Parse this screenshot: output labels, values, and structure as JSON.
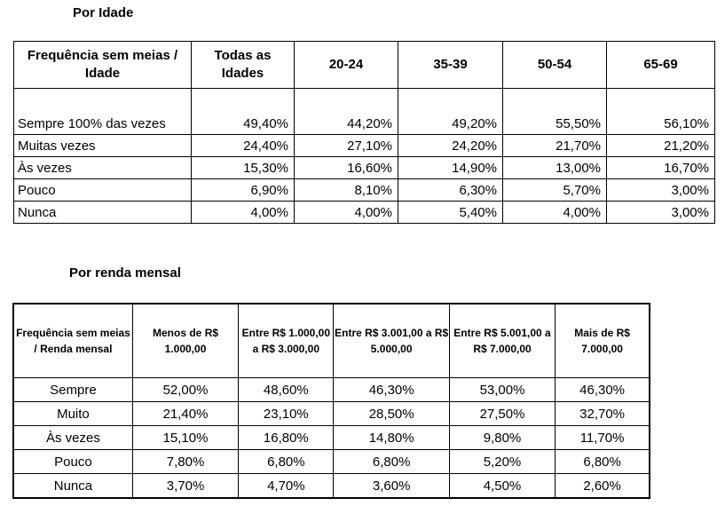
{
  "table1": {
    "title": "Por Idade",
    "headers": [
      "Frequência sem meias / Idade",
      "Todas as Idades",
      "20-24",
      "35-39",
      "50-54",
      "65-69"
    ],
    "rows": [
      [
        "Sempre 100% das vezes",
        "49,40%",
        "44,20%",
        "49,20%",
        "55,50%",
        "56,10%"
      ],
      [
        "Muitas vezes",
        "24,40%",
        "27,10%",
        "24,20%",
        "21,70%",
        "21,20%"
      ],
      [
        "Às vezes",
        "15,30%",
        "16,60%",
        "14,90%",
        "13,00%",
        "16,70%"
      ],
      [
        "Pouco",
        "6,90%",
        "8,10%",
        "6,30%",
        "5,70%",
        "3,00%"
      ],
      [
        "Nunca",
        "4,00%",
        "4,00%",
        "5,40%",
        "4,00%",
        "3,00%"
      ]
    ]
  },
  "table2": {
    "title": "Por renda mensal",
    "headers": [
      "Frequência sem meias / Renda mensal",
      "Menos de R$ 1.000,00",
      "Entre R$ 1.000,00 a R$ 3.000,00",
      "Entre R$ 3.001,00 a R$ 5.000,00",
      "Entre R$ 5.001,00 a R$ 7.000,00",
      "Mais de R$ 7.000,00"
    ],
    "rows": [
      [
        "Sempre",
        "52,00%",
        "48,60%",
        "46,30%",
        "53,00%",
        "46,30%"
      ],
      [
        "Muito",
        "21,40%",
        "23,10%",
        "28,50%",
        "27,50%",
        "32,70%"
      ],
      [
        "Às vezes",
        "15,10%",
        "16,80%",
        "14,80%",
        "9,80%",
        "11,70%"
      ],
      [
        "Pouco",
        "7,80%",
        "6,80%",
        "6,80%",
        "5,20%",
        "6,80%"
      ],
      [
        "Nunca",
        "3,70%",
        "4,70%",
        "3,60%",
        "4,50%",
        "2,60%"
      ]
    ]
  }
}
